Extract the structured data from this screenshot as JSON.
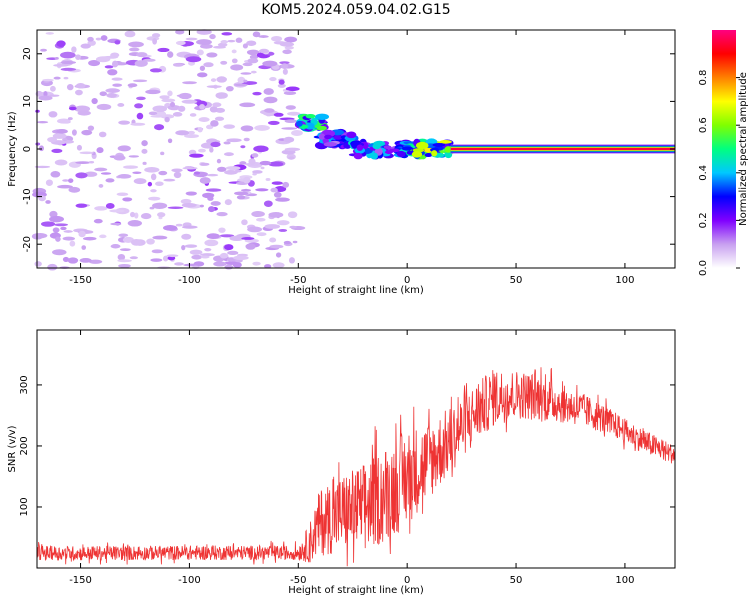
{
  "chart_data": [
    {
      "type": "heatmap",
      "title": "KOM5.2024.059.04.02.G15",
      "xlabel": "Height of straight line (km)",
      "ylabel": "Frequency (Hz)",
      "xlim": [
        -170,
        123
      ],
      "ylim": [
        -25,
        25
      ],
      "x_ticks": [
        "-150",
        "-100",
        "-50",
        "0",
        "50",
        "100"
      ],
      "x_tick_values": [
        -150,
        -100,
        -50,
        0,
        50,
        100
      ],
      "y_ticks": [
        "-20",
        "-10",
        "0",
        "10",
        "20"
      ],
      "y_tick_values": [
        -20,
        -10,
        0,
        10,
        20
      ],
      "colorbar": {
        "label": "Normalized spectral amplitude",
        "range": [
          0,
          1
        ],
        "ticks": [
          "0.0",
          "0.2",
          "0.4",
          "0.6",
          "0.8"
        ],
        "tick_values": [
          0.0,
          0.2,
          0.4,
          0.6,
          0.8
        ],
        "colors": [
          "#ffffff",
          "#c8a0f0",
          "#8000ff",
          "#0000ff",
          "#00c8ff",
          "#00ff80",
          "#80ff00",
          "#ffff00",
          "#ff8000",
          "#ff0000",
          "#ff0080"
        ]
      },
      "noise_region_x": [
        -170,
        -50
      ],
      "signal_line": {
        "segments": [
          {
            "x": [
              -50,
              -38
            ],
            "y": 5.5,
            "amplitude": 0.45
          },
          {
            "x": [
              -40,
              -25
            ],
            "y": 2,
            "amplitude": 0.3
          },
          {
            "x": [
              -25,
              0
            ],
            "y": 0,
            "amplitude": 0.35
          },
          {
            "x": [
              0,
              20
            ],
            "y": 0,
            "amplitude": 0.55
          },
          {
            "x": [
              20,
              123
            ],
            "y": 0,
            "amplitude": 1.0
          }
        ]
      }
    },
    {
      "type": "line",
      "xlabel": "Height of straight line (km)",
      "ylabel": "SNR (v/v)",
      "xlim": [
        -170,
        123
      ],
      "ylim": [
        0,
        390
      ],
      "x_ticks": [
        "-150",
        "-100",
        "-50",
        "0",
        "50",
        "100"
      ],
      "x_tick_values": [
        -150,
        -100,
        -50,
        0,
        50,
        100
      ],
      "y_ticks": [
        "100",
        "200",
        "300"
      ],
      "y_tick_values": [
        100,
        200,
        300
      ],
      "color": "#ee3333",
      "envelope": {
        "x": [
          -170,
          -150,
          -100,
          -50,
          -45,
          -40,
          -30,
          -20,
          -10,
          0,
          10,
          20,
          30,
          40,
          50,
          60,
          70,
          80,
          90,
          100,
          110,
          123
        ],
        "mean": [
          25,
          24,
          25,
          25,
          40,
          75,
          90,
          100,
          120,
          150,
          175,
          210,
          250,
          280,
          285,
          280,
          270,
          260,
          245,
          225,
          205,
          185
        ],
        "spread": [
          15,
          15,
          15,
          15,
          40,
          70,
          80,
          90,
          100,
          100,
          80,
          70,
          60,
          60,
          50,
          50,
          40,
          35,
          30,
          25,
          25,
          20
        ]
      }
    }
  ]
}
